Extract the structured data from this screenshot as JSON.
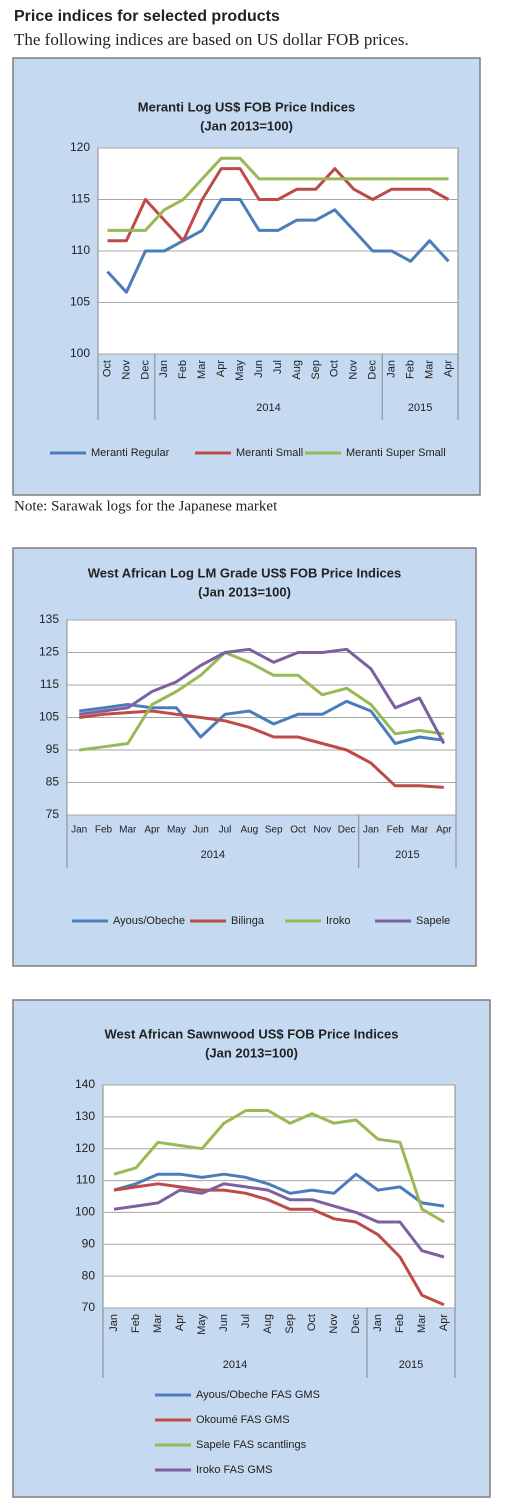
{
  "header": {
    "title": "Price indices for selected products",
    "subtitle": "The following indices are based on US dollar FOB prices."
  },
  "note": "Note: Sarawak logs for the Japanese market",
  "chart_data": [
    {
      "type": "line",
      "title": "Meranti Log US$ FOB Price Indices",
      "subtitle": "(Jan 2013=100)",
      "category_groups": [
        {
          "label": null,
          "categories": [
            "Oct",
            "Nov",
            "Dec"
          ]
        },
        {
          "label": "2014",
          "categories": [
            "Jan",
            "Feb",
            "Mar",
            "Apr",
            "May",
            "Jun",
            "Jul",
            "Aug",
            "Sep",
            "Oct",
            "Nov",
            "Dec"
          ]
        },
        {
          "label": "2015",
          "categories": [
            "Jan",
            "Feb",
            "Mar",
            "Apr"
          ]
        }
      ],
      "series": [
        {
          "name": "Meranti Regular",
          "color": "#4a7ebb",
          "values": [
            108,
            106,
            110,
            110,
            111,
            112,
            115,
            115,
            112,
            112,
            113,
            113,
            114,
            112,
            110,
            110,
            109,
            111,
            109
          ]
        },
        {
          "name": "Meranti Small",
          "color": "#be4b48",
          "values": [
            111,
            111,
            115,
            113,
            111,
            115,
            118,
            118,
            115,
            115,
            116,
            116,
            118,
            116,
            115,
            116,
            116,
            116,
            115
          ]
        },
        {
          "name": "Meranti Super Small",
          "color": "#98b954",
          "values": [
            112,
            112,
            112,
            114,
            115,
            117,
            119,
            119,
            117,
            117,
            117,
            117,
            117,
            117,
            117,
            117,
            117,
            117,
            117
          ]
        }
      ],
      "ylim": [
        100,
        120
      ],
      "yticks": [
        100,
        105,
        110,
        115,
        120
      ],
      "grid": true
    },
    {
      "type": "line",
      "title": "West African Log LM Grade US$ FOB Price Indices",
      "subtitle": "(Jan 2013=100)",
      "category_groups": [
        {
          "label": "2014",
          "categories": [
            "Jan",
            "Feb",
            "Mar",
            "Apr",
            "May",
            "Jun",
            "Jul",
            "Aug",
            "Sep",
            "Oct",
            "Nov",
            "Dec"
          ]
        },
        {
          "label": "2015",
          "categories": [
            "Jan",
            "Feb",
            "Mar",
            "Apr"
          ]
        }
      ],
      "series": [
        {
          "name": "Ayous/Obeche",
          "color": "#4a7ebb",
          "values": [
            107,
            108,
            109,
            108,
            108,
            99,
            106,
            107,
            103,
            106,
            106,
            110,
            107,
            97,
            99,
            98
          ]
        },
        {
          "name": "Bilinga",
          "color": "#be4b48",
          "values": [
            105,
            106,
            106.5,
            107,
            106,
            105,
            104,
            102,
            99,
            99,
            97,
            95,
            91,
            84,
            84,
            83.5
          ]
        },
        {
          "name": "Iroko",
          "color": "#98b954",
          "values": [
            95,
            96,
            97,
            109,
            113,
            118,
            125,
            122,
            118,
            118,
            112,
            114,
            109,
            100,
            101,
            100
          ]
        },
        {
          "name": "Sapele",
          "color": "#7d60a0",
          "values": [
            106,
            107,
            108,
            113,
            116,
            121,
            125,
            126,
            122,
            125,
            125,
            126,
            120,
            108,
            111,
            97
          ]
        }
      ],
      "ylim": [
        75,
        135
      ],
      "yticks": [
        75,
        85,
        95,
        105,
        115,
        125,
        135
      ],
      "grid": true
    },
    {
      "type": "line",
      "title": "West African Sawnwood US$ FOB Price Indices",
      "subtitle": "(Jan 2013=100)",
      "category_groups": [
        {
          "label": "2014",
          "categories": [
            "Jan",
            "Feb",
            "Mar",
            "Apr",
            "May",
            "Jun",
            "Jul",
            "Aug",
            "Sep",
            "Oct",
            "Nov",
            "Dec"
          ]
        },
        {
          "label": "2015",
          "categories": [
            "Jan",
            "Feb",
            "Mar",
            "Apr"
          ]
        }
      ],
      "series": [
        {
          "name": "Ayous/Obeche  FAS GMS",
          "color": "#4a7ebb",
          "values": [
            107,
            109,
            112,
            112,
            111,
            112,
            111,
            109,
            106,
            107,
            106,
            112,
            107,
            108,
            103,
            102
          ]
        },
        {
          "name": "Okoumé  FAS GMS",
          "color": "#be4b48",
          "values": [
            107,
            108,
            109,
            108,
            107,
            107,
            106,
            104,
            101,
            101,
            98,
            97,
            93,
            86,
            74,
            71
          ]
        },
        {
          "name": "Sapele FAS scantlings",
          "color": "#98b954",
          "values": [
            112,
            114,
            122,
            121,
            120,
            128,
            132,
            132,
            128,
            131,
            128,
            129,
            123,
            122,
            101,
            97
          ]
        },
        {
          "name": "Iroko FAS GMS",
          "color": "#7d60a0",
          "values": [
            101,
            102,
            103,
            107,
            106,
            109,
            108,
            107,
            104,
            104,
            102,
            100,
            97,
            97,
            88,
            86
          ]
        }
      ],
      "ylim": [
        70,
        140
      ],
      "yticks": [
        70,
        80,
        90,
        100,
        110,
        120,
        130,
        140
      ],
      "grid": true
    }
  ]
}
